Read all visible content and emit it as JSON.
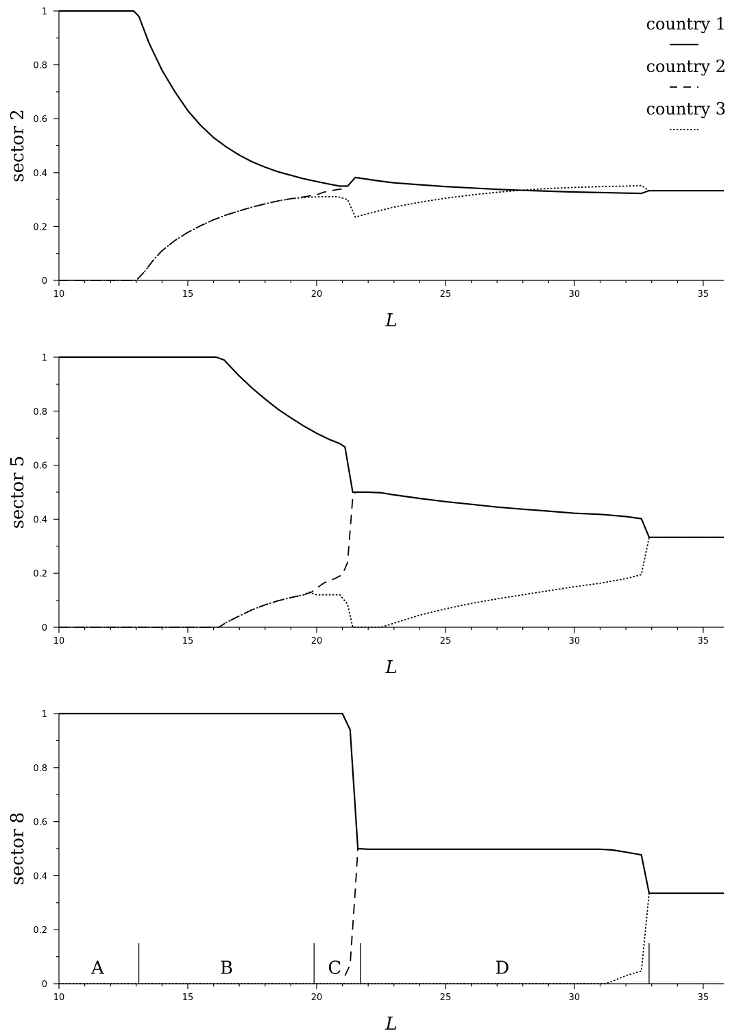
{
  "chart_data": [
    {
      "type": "line",
      "ylabel": "sector 2",
      "xlabel": "L",
      "xlim": [
        10,
        35.8
      ],
      "ylim": [
        0,
        1
      ],
      "xticks": [
        "10",
        "15",
        "20",
        "25",
        "30",
        "35"
      ],
      "yticks": [
        "0",
        "0.2",
        "0.4",
        "0.6",
        "0.8",
        "1"
      ],
      "legend": {
        "position": "top-right",
        "entries": [
          {
            "label": "country 1",
            "style": "solid"
          },
          {
            "label": "country 2",
            "style": "dashed"
          },
          {
            "label": "country 3",
            "style": "dotted"
          }
        ]
      },
      "series": [
        {
          "style": "solid",
          "points": [
            [
              10,
              1
            ],
            [
              12.9,
              1
            ],
            [
              13.1,
              0.98
            ],
            [
              13.5,
              0.88
            ],
            [
              14,
              0.78
            ],
            [
              14.5,
              0.7
            ],
            [
              15,
              0.63
            ],
            [
              15.5,
              0.575
            ],
            [
              16,
              0.53
            ],
            [
              16.5,
              0.495
            ],
            [
              17,
              0.465
            ],
            [
              17.5,
              0.44
            ],
            [
              18,
              0.42
            ],
            [
              18.5,
              0.403
            ],
            [
              19,
              0.39
            ],
            [
              19.5,
              0.377
            ],
            [
              20,
              0.367
            ],
            [
              20.5,
              0.357
            ],
            [
              20.9,
              0.35
            ],
            [
              21.2,
              0.35
            ],
            [
              21.5,
              0.382
            ],
            [
              22,
              0.375
            ],
            [
              22.5,
              0.368
            ],
            [
              23,
              0.362
            ],
            [
              24,
              0.355
            ],
            [
              25,
              0.348
            ],
            [
              26,
              0.343
            ],
            [
              27,
              0.338
            ],
            [
              28,
              0.334
            ],
            [
              29,
              0.331
            ],
            [
              30,
              0.328
            ],
            [
              31,
              0.326
            ],
            [
              32,
              0.324
            ],
            [
              32.6,
              0.323
            ],
            [
              32.9,
              0.333
            ],
            [
              35.8,
              0.333
            ]
          ]
        },
        {
          "style": "dashed",
          "points": [
            [
              10,
              0
            ],
            [
              13.0,
              0
            ],
            [
              13.3,
              0.03
            ],
            [
              13.7,
              0.08
            ],
            [
              14,
              0.11
            ],
            [
              14.5,
              0.148
            ],
            [
              15,
              0.178
            ],
            [
              15.5,
              0.203
            ],
            [
              16,
              0.225
            ],
            [
              16.5,
              0.243
            ],
            [
              17,
              0.258
            ],
            [
              17.5,
              0.272
            ],
            [
              18,
              0.284
            ],
            [
              18.5,
              0.295
            ],
            [
              19,
              0.303
            ],
            [
              19.5,
              0.31
            ],
            [
              20,
              0.318
            ],
            [
              20.3,
              0.328
            ],
            [
              20.7,
              0.335
            ],
            [
              21.0,
              0.34
            ]
          ]
        },
        {
          "style": "dotted",
          "points": [
            [
              10,
              0
            ],
            [
              13.0,
              0
            ],
            [
              13.3,
              0.03
            ],
            [
              13.7,
              0.08
            ],
            [
              14,
              0.11
            ],
            [
              14.5,
              0.148
            ],
            [
              15,
              0.178
            ],
            [
              15.5,
              0.203
            ],
            [
              16,
              0.225
            ],
            [
              16.5,
              0.243
            ],
            [
              17,
              0.258
            ],
            [
              17.5,
              0.272
            ],
            [
              18,
              0.284
            ],
            [
              18.5,
              0.295
            ],
            [
              19,
              0.303
            ],
            [
              19.5,
              0.308
            ],
            [
              20,
              0.31
            ],
            [
              20.8,
              0.311
            ],
            [
              21.2,
              0.3
            ],
            [
              21.5,
              0.235
            ],
            [
              22,
              0.248
            ],
            [
              22.5,
              0.26
            ],
            [
              23,
              0.272
            ],
            [
              24,
              0.29
            ],
            [
              25,
              0.305
            ],
            [
              26,
              0.317
            ],
            [
              27,
              0.327
            ],
            [
              28,
              0.335
            ],
            [
              29,
              0.341
            ],
            [
              30,
              0.345
            ],
            [
              31,
              0.348
            ],
            [
              32,
              0.35
            ],
            [
              32.6,
              0.352
            ],
            [
              32.9,
              0.333
            ],
            [
              35.8,
              0.333
            ]
          ]
        }
      ]
    },
    {
      "type": "line",
      "ylabel": "sector 5",
      "xlabel": "L",
      "xlim": [
        10,
        35.8
      ],
      "ylim": [
        0,
        1
      ],
      "xticks": [
        "10",
        "15",
        "20",
        "25",
        "30",
        "35"
      ],
      "yticks": [
        "0",
        "0.2",
        "0.4",
        "0.6",
        "0.8",
        "1"
      ],
      "series": [
        {
          "style": "solid",
          "points": [
            [
              10,
              1
            ],
            [
              16.1,
              1
            ],
            [
              16.4,
              0.99
            ],
            [
              17,
              0.93
            ],
            [
              17.5,
              0.885
            ],
            [
              18,
              0.845
            ],
            [
              18.5,
              0.807
            ],
            [
              19,
              0.775
            ],
            [
              19.5,
              0.745
            ],
            [
              20,
              0.718
            ],
            [
              20.5,
              0.695
            ],
            [
              20.9,
              0.68
            ],
            [
              21.1,
              0.667
            ],
            [
              21.4,
              0.5
            ],
            [
              22,
              0.5
            ],
            [
              22.5,
              0.498
            ],
            [
              23,
              0.49
            ],
            [
              24,
              0.477
            ],
            [
              25,
              0.465
            ],
            [
              26,
              0.455
            ],
            [
              27,
              0.445
            ],
            [
              28,
              0.437
            ],
            [
              29,
              0.43
            ],
            [
              30,
              0.422
            ],
            [
              31,
              0.418
            ],
            [
              32,
              0.41
            ],
            [
              32.6,
              0.402
            ],
            [
              32.9,
              0.333
            ],
            [
              35.8,
              0.333
            ]
          ]
        },
        {
          "style": "dashed",
          "points": [
            [
              10,
              0
            ],
            [
              16.2,
              0
            ],
            [
              16.5,
              0.018
            ],
            [
              17,
              0.042
            ],
            [
              17.5,
              0.065
            ],
            [
              18,
              0.083
            ],
            [
              18.5,
              0.098
            ],
            [
              19,
              0.11
            ],
            [
              19.5,
              0.12
            ],
            [
              19.8,
              0.13
            ],
            [
              20,
              0.145
            ],
            [
              20.3,
              0.165
            ],
            [
              20.7,
              0.18
            ],
            [
              21.0,
              0.195
            ],
            [
              21.2,
              0.24
            ],
            [
              21.4,
              0.48
            ],
            [
              21.5,
              0.5
            ]
          ]
        },
        {
          "style": "dotted",
          "points": [
            [
              10,
              0
            ],
            [
              16.2,
              0
            ],
            [
              16.5,
              0.018
            ],
            [
              17,
              0.042
            ],
            [
              17.5,
              0.065
            ],
            [
              18,
              0.083
            ],
            [
              18.5,
              0.098
            ],
            [
              19,
              0.11
            ],
            [
              19.5,
              0.12
            ],
            [
              19.7,
              0.13
            ],
            [
              20,
              0.12
            ],
            [
              20.5,
              0.12
            ],
            [
              20.9,
              0.12
            ],
            [
              21.2,
              0.085
            ],
            [
              21.4,
              0
            ],
            [
              22.5,
              0
            ],
            [
              23,
              0.015
            ],
            [
              24,
              0.045
            ],
            [
              25,
              0.068
            ],
            [
              26,
              0.088
            ],
            [
              27,
              0.105
            ],
            [
              28,
              0.12
            ],
            [
              29,
              0.135
            ],
            [
              30,
              0.15
            ],
            [
              31,
              0.163
            ],
            [
              32,
              0.18
            ],
            [
              32.6,
              0.195
            ],
            [
              32.9,
              0.333
            ],
            [
              35.8,
              0.333
            ]
          ]
        }
      ]
    },
    {
      "type": "line",
      "ylabel": "sector 8",
      "xlabel": "L",
      "xlim": [
        10,
        35.8
      ],
      "ylim": [
        0,
        1
      ],
      "xticks": [
        "10",
        "15",
        "20",
        "25",
        "30",
        "35"
      ],
      "yticks": [
        "0",
        "0.2",
        "0.4",
        "0.6",
        "0.8",
        "1"
      ],
      "regions": {
        "labels": [
          {
            "text": "A",
            "x": 11.5
          },
          {
            "text": "B",
            "x": 16.5
          },
          {
            "text": "C",
            "x": 20.7
          },
          {
            "text": "D",
            "x": 27.2
          }
        ],
        "boundaries": [
          13.1,
          19.9,
          21.7,
          32.9
        ]
      },
      "series": [
        {
          "style": "solid",
          "points": [
            [
              10,
              1
            ],
            [
              21.0,
              1
            ],
            [
              21.3,
              0.94
            ],
            [
              21.6,
              0.5
            ],
            [
              22,
              0.498
            ],
            [
              25,
              0.498
            ],
            [
              28,
              0.498
            ],
            [
              31,
              0.498
            ],
            [
              31.5,
              0.495
            ],
            [
              32,
              0.487
            ],
            [
              32.6,
              0.477
            ],
            [
              32.9,
              0.335
            ],
            [
              35.8,
              0.335
            ]
          ]
        },
        {
          "style": "dashed",
          "points": [
            [
              21.1,
              0.03
            ],
            [
              21.3,
              0.07
            ],
            [
              21.5,
              0.35
            ],
            [
              21.6,
              0.5
            ]
          ]
        },
        {
          "style": "dotted",
          "points": [
            [
              10,
              0
            ],
            [
              31.2,
              0
            ],
            [
              31.5,
              0.01
            ],
            [
              32,
              0.03
            ],
            [
              32.6,
              0.047
            ],
            [
              32.9,
              0.335
            ],
            [
              35.8,
              0.335
            ]
          ]
        }
      ]
    }
  ]
}
